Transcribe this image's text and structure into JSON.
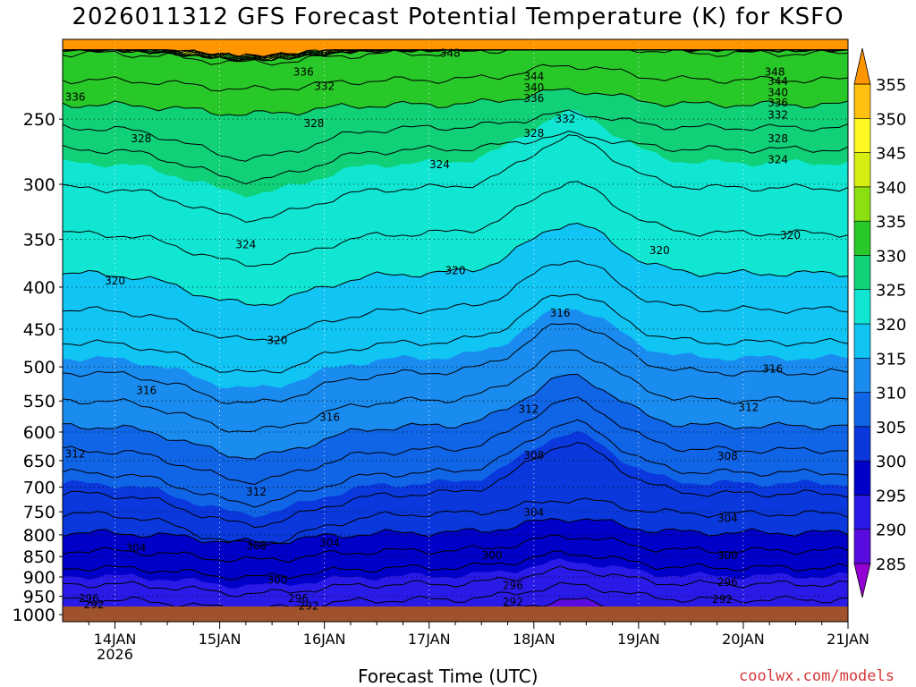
{
  "chart_data": {
    "type": "heatmap",
    "title": "2026011312 GFS Forecast Potential Temperature (K) for KSFO",
    "xlabel": "Forecast Time (UTC)",
    "ylabel": "",
    "watermark": "coolwx.com/models",
    "x_ticks": [
      "14JAN",
      "15JAN",
      "16JAN",
      "17JAN",
      "18JAN",
      "19JAN",
      "20JAN",
      "21JAN"
    ],
    "x_subtick": "2026",
    "x_range_days": [
      13.5,
      21.0
    ],
    "y_ticks": [
      250,
      300,
      350,
      400,
      450,
      500,
      550,
      600,
      650,
      700,
      750,
      800,
      850,
      900,
      950,
      1000
    ],
    "y_range_hpa": [
      200,
      1020
    ],
    "y_scale": "log",
    "colorbar": {
      "ticks": [
        285,
        290,
        295,
        300,
        305,
        310,
        315,
        320,
        325,
        330,
        335,
        340,
        345,
        350,
        355
      ],
      "colors": [
        "#9400d3",
        "#5a0ce0",
        "#2a1ae8",
        "#0000c8",
        "#0a38dc",
        "#1064e6",
        "#1a8cf0",
        "#10c4f4",
        "#10e6d2",
        "#10d078",
        "#28c828",
        "#8ae010",
        "#d6ee10",
        "#fff820",
        "#ffc010",
        "#ff9600"
      ]
    },
    "contour_labels": [
      {
        "value": "348",
        "day": 17.2,
        "p": 208
      },
      {
        "value": "348",
        "day": 20.3,
        "p": 219
      },
      {
        "value": "344",
        "day": 18.0,
        "p": 222
      },
      {
        "value": "344",
        "day": 20.33,
        "p": 225
      },
      {
        "value": "340",
        "day": 18.0,
        "p": 229
      },
      {
        "value": "340",
        "day": 20.33,
        "p": 232
      },
      {
        "value": "336",
        "day": 15.8,
        "p": 219
      },
      {
        "value": "336",
        "day": 13.62,
        "p": 235
      },
      {
        "value": "336",
        "day": 18.0,
        "p": 236
      },
      {
        "value": "336",
        "day": 20.33,
        "p": 239
      },
      {
        "value": "332",
        "day": 16.0,
        "p": 228
      },
      {
        "value": "332",
        "day": 18.3,
        "p": 250
      },
      {
        "value": "332",
        "day": 20.33,
        "p": 247
      },
      {
        "value": "328",
        "day": 15.9,
        "p": 253
      },
      {
        "value": "328",
        "day": 14.25,
        "p": 264
      },
      {
        "value": "328",
        "day": 18.0,
        "p": 260
      },
      {
        "value": "328",
        "day": 20.33,
        "p": 264
      },
      {
        "value": "324",
        "day": 17.1,
        "p": 284
      },
      {
        "value": "324",
        "day": 20.33,
        "p": 280
      },
      {
        "value": "324",
        "day": 15.25,
        "p": 355
      },
      {
        "value": "320",
        "day": 14.0,
        "p": 393
      },
      {
        "value": "320",
        "day": 15.55,
        "p": 464
      },
      {
        "value": "320",
        "day": 17.25,
        "p": 382
      },
      {
        "value": "320",
        "day": 19.2,
        "p": 361
      },
      {
        "value": "320",
        "day": 20.45,
        "p": 346
      },
      {
        "value": "316",
        "day": 14.3,
        "p": 534
      },
      {
        "value": "316",
        "day": 16.05,
        "p": 576
      },
      {
        "value": "316",
        "day": 18.25,
        "p": 430
      },
      {
        "value": "316",
        "day": 20.28,
        "p": 503
      },
      {
        "value": "312",
        "day": 13.62,
        "p": 638
      },
      {
        "value": "312",
        "day": 15.35,
        "p": 710
      },
      {
        "value": "312",
        "day": 17.95,
        "p": 563
      },
      {
        "value": "312",
        "day": 20.05,
        "p": 560
      },
      {
        "value": "308",
        "day": 15.35,
        "p": 825
      },
      {
        "value": "308",
        "day": 18.0,
        "p": 640
      },
      {
        "value": "308",
        "day": 19.85,
        "p": 642
      },
      {
        "value": "304",
        "day": 14.2,
        "p": 830
      },
      {
        "value": "304",
        "day": 16.05,
        "p": 818
      },
      {
        "value": "304",
        "day": 18.0,
        "p": 752
      },
      {
        "value": "304",
        "day": 19.85,
        "p": 764
      },
      {
        "value": "300",
        "day": 15.55,
        "p": 908
      },
      {
        "value": "300",
        "day": 17.6,
        "p": 848
      },
      {
        "value": "300",
        "day": 19.85,
        "p": 848
      },
      {
        "value": "296",
        "day": 13.75,
        "p": 956
      },
      {
        "value": "296",
        "day": 15.75,
        "p": 956
      },
      {
        "value": "296",
        "day": 17.8,
        "p": 922
      },
      {
        "value": "296",
        "day": 19.85,
        "p": 914
      },
      {
        "value": "292",
        "day": 13.8,
        "p": 973
      },
      {
        "value": "292",
        "day": 15.85,
        "p": 976
      },
      {
        "value": "292",
        "day": 17.8,
        "p": 965
      },
      {
        "value": "292",
        "day": 19.8,
        "p": 958
      }
    ]
  }
}
